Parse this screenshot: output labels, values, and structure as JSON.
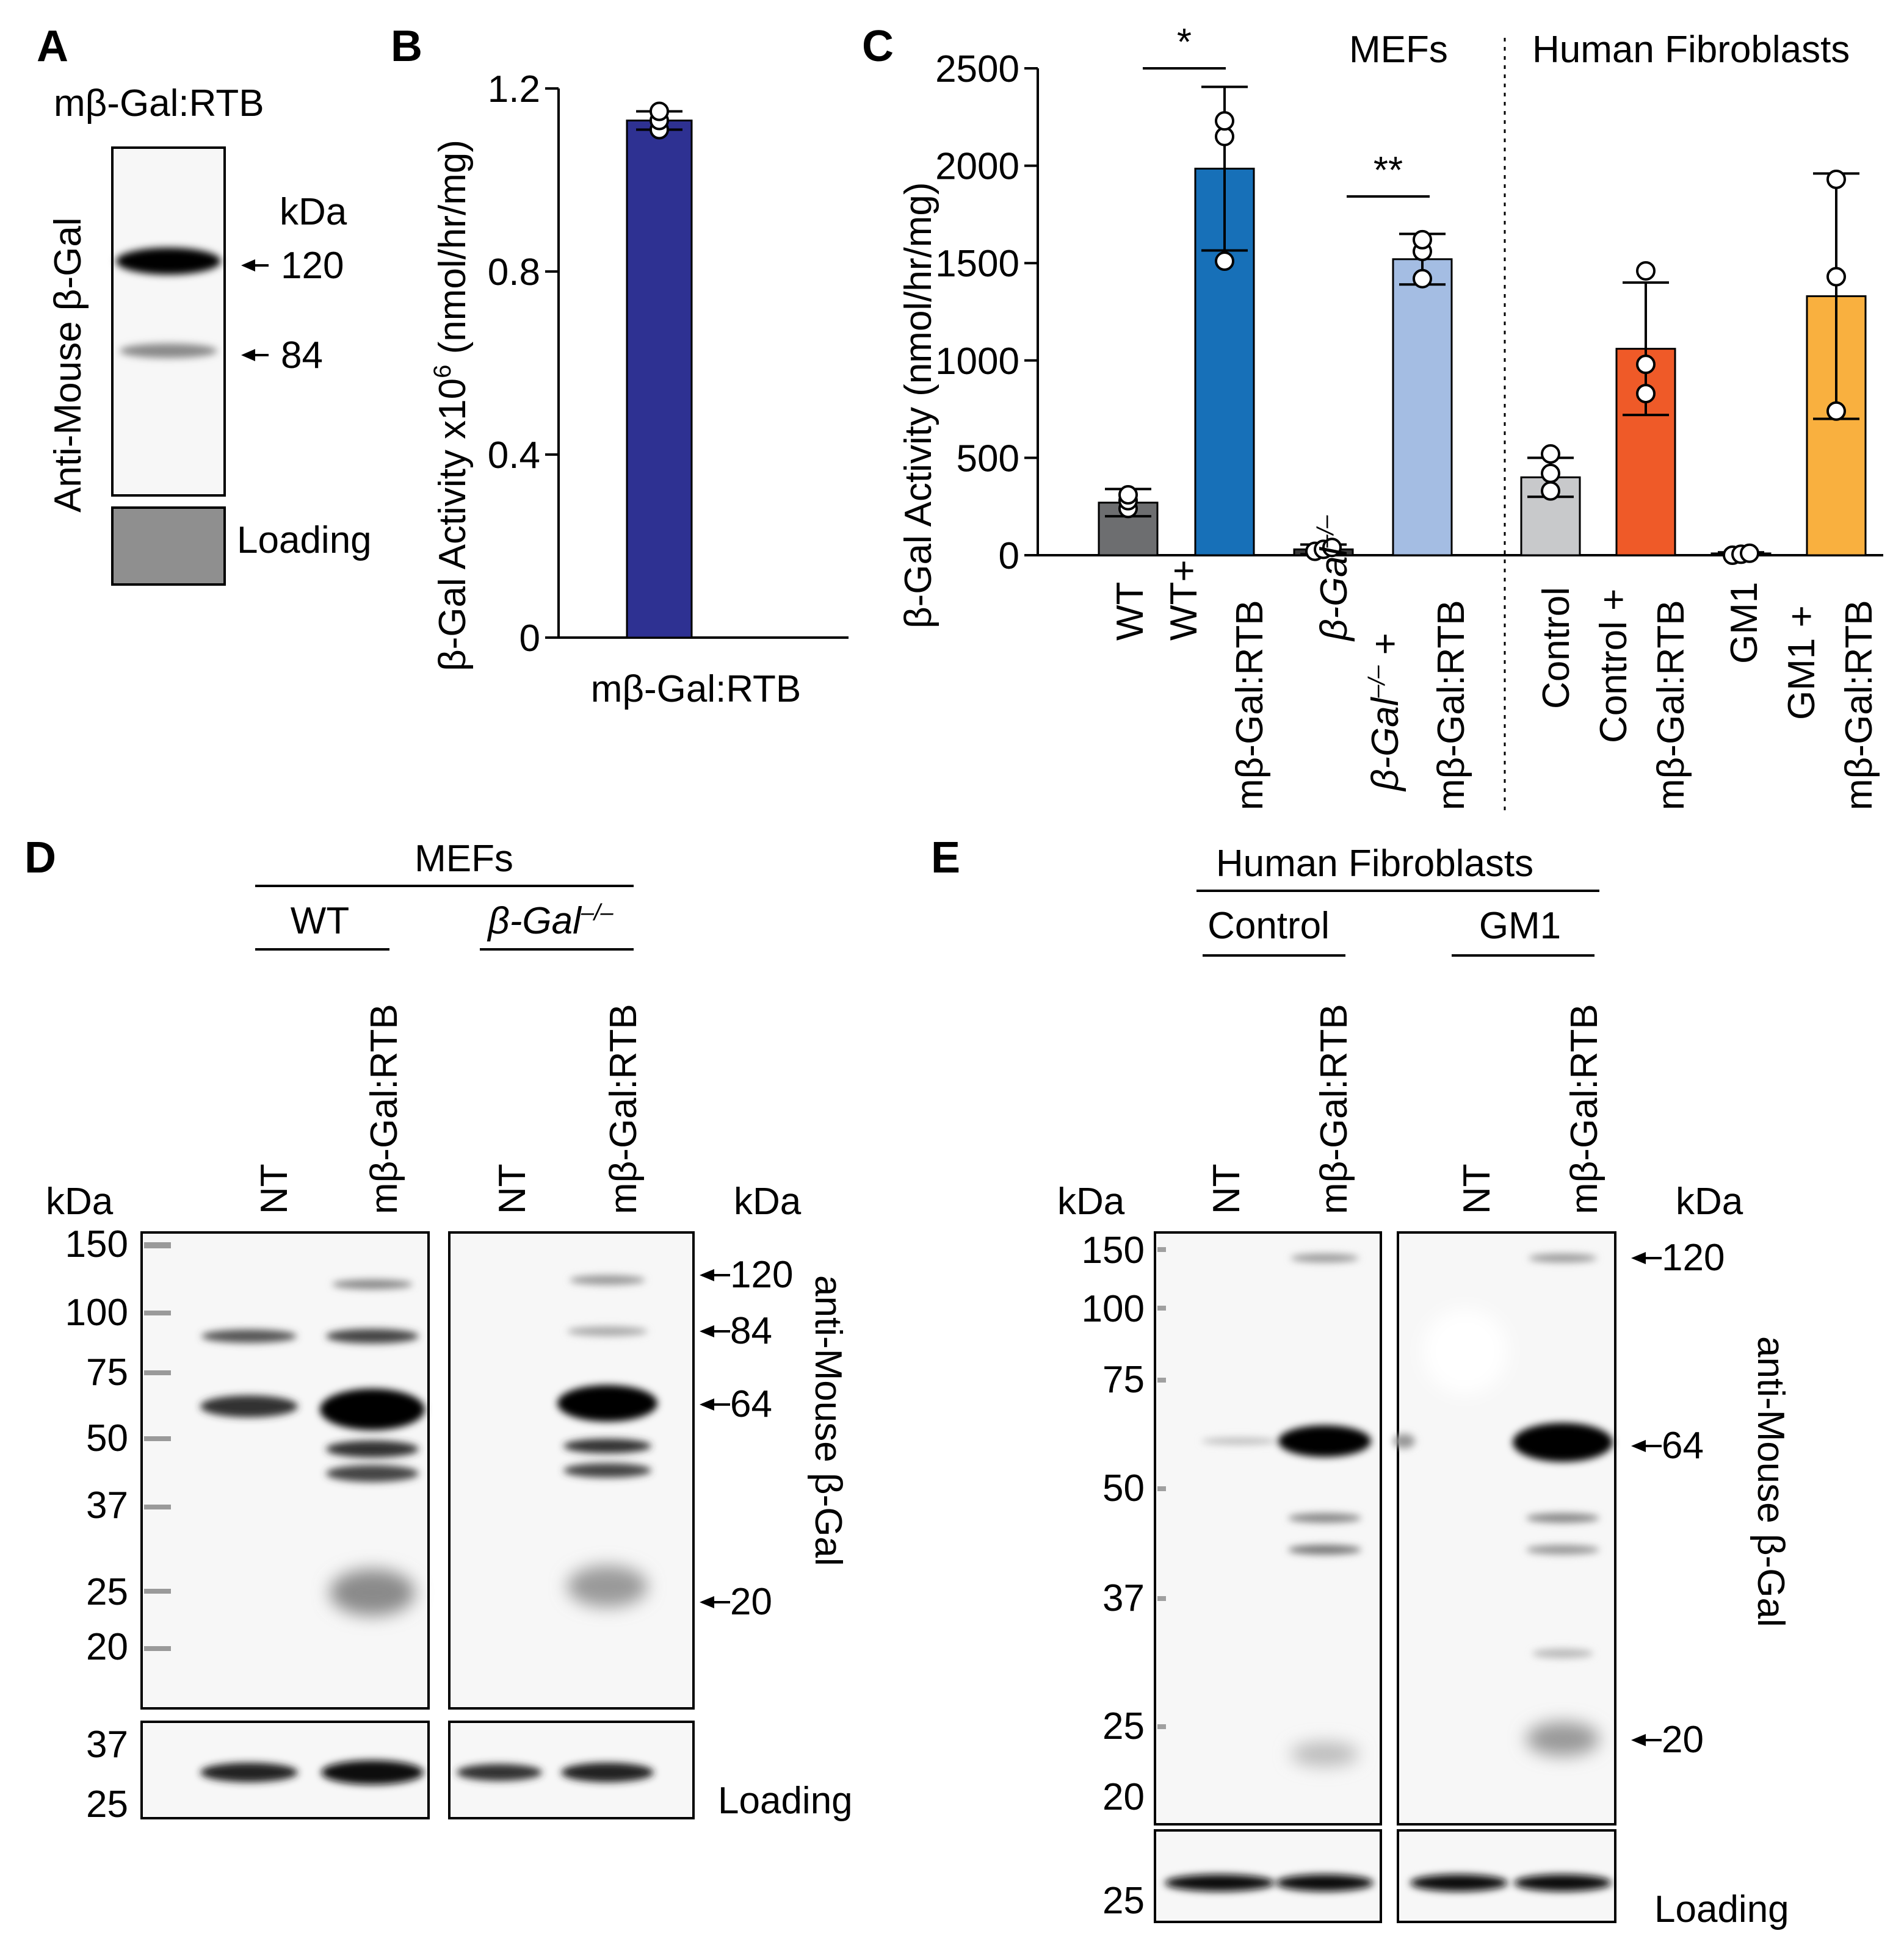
{
  "panels": {
    "A": {
      "label": "A",
      "header": "mβ-Gal:RTB",
      "ylabel": "Anti-Mouse β-Gal",
      "kda_label": "kDa",
      "markers": [
        "120",
        "84"
      ],
      "loading": "Loading"
    },
    "B": {
      "label": "B",
      "ylabel": "β-Gal Activity x10",
      "ylabel_sup": "6",
      "ylabel_units": " (nmol/hr/mg)",
      "bar_color": "#2e3192"
    },
    "C": {
      "label": "C",
      "ylabel": "β-Gal Activity (nmol/hr/mg)",
      "group_mefs": "MEFs",
      "group_human": "Human Fibroblasts",
      "star_single": "*",
      "star_double": "**",
      "tick_labels": [
        [
          "WT"
        ],
        [
          "WT+",
          "mβ-Gal:RTB"
        ],
        [
          "β-Gal",
          "–/–"
        ],
        [
          "β-Gal",
          "–/–",
          " +",
          "mβ-Gal:RTB"
        ],
        [
          "Control"
        ],
        [
          "Control +",
          "mβ-Gal:RTB"
        ],
        [
          "GM1"
        ],
        [
          "GM1 +",
          "mβ-Gal:RTB"
        ]
      ]
    },
    "D": {
      "label": "D",
      "group": "MEFs",
      "sub_wt": "WT",
      "sub_ko": "β-Gal",
      "sub_ko_sup": "–/–",
      "lanes": [
        "NT",
        "mβ-Gal:RTB",
        "NT",
        "mβ-Gal:RTB"
      ],
      "kda_left": "kDa",
      "kda_right": "kDa",
      "ladder": [
        "150",
        "100",
        "75",
        "50",
        "37",
        "25",
        "20"
      ],
      "loading_ladder": [
        "37",
        "25"
      ],
      "arrows": [
        "120",
        "84",
        "64",
        "20"
      ],
      "side_label": "anti-Mouse β-Gal",
      "loading": "Loading"
    },
    "E": {
      "label": "E",
      "group": "Human Fibroblasts",
      "sub_control": "Control",
      "sub_gm1": "GM1",
      "lanes": [
        "NT",
        "mβ-Gal:RTB",
        "NT",
        "mβ-Gal:RTB"
      ],
      "kda_left": "kDa",
      "kda_right": "kDa",
      "ladder": [
        "150",
        "100",
        "75",
        "50",
        "37",
        "25",
        "20"
      ],
      "loading_ladder": [
        "25"
      ],
      "arrows": [
        "120",
        "64",
        "20"
      ],
      "side_label": "anti-Mouse β-Gal",
      "loading": "Loading"
    }
  },
  "chart_data": [
    {
      "panel": "B",
      "type": "bar",
      "categories": [
        "mβ-Gal:RTB"
      ],
      "values": [
        1.13
      ],
      "errors": [
        0.02
      ],
      "points": [
        [
          1.11,
          1.13,
          1.15
        ]
      ],
      "ylabel": "β-Gal Activity x10^6 (nmol/hr/mg)",
      "ylim": [
        0,
        1.2
      ],
      "yticks": [
        "0",
        "0.4",
        "0.8",
        "1.2"
      ],
      "colors": [
        "#2e3192"
      ]
    },
    {
      "panel": "C",
      "type": "bar",
      "categories": [
        "WT",
        "WT+ mβ-Gal:RTB",
        "β-Gal–/–",
        "β-Gal–/– + mβ-Gal:RTB",
        "Control",
        "Control + mβ-Gal:RTB",
        "GM1",
        "GM1 + mβ-Gal:RTB"
      ],
      "values": [
        270,
        1985,
        30,
        1520,
        400,
        1060,
        5,
        1330
      ],
      "errors": [
        70,
        420,
        25,
        130,
        100,
        340,
        10,
        630
      ],
      "points": [
        [
          240,
          280,
          310
        ],
        [
          1510,
          2150,
          2230
        ],
        [
          20,
          30,
          40
        ],
        [
          1420,
          1560,
          1620
        ],
        [
          330,
          420,
          520
        ],
        [
          830,
          980,
          1460
        ],
        [
          0,
          5,
          10
        ],
        [
          740,
          1430,
          1930
        ]
      ],
      "colors": [
        "#6d6e70",
        "#1770b8",
        "#3a3a3a",
        "#a4bde3",
        "#c8c9cb",
        "#ef5a28",
        "#ffffff",
        "#f9b03f"
      ],
      "ylabel": "β-Gal Activity (nmol/hr/mg)",
      "ylim": [
        0,
        2500
      ],
      "yticks": [
        "0",
        "500",
        "1000",
        "1500",
        "2000",
        "2500"
      ],
      "significance": [
        {
          "between": [
            "WT",
            "WT+ mβ-Gal:RTB"
          ],
          "label": "*"
        },
        {
          "between": [
            "β-Gal–/–",
            "β-Gal–/– + mβ-Gal:RTB"
          ],
          "label": "**"
        }
      ],
      "groups": [
        "MEFs",
        "Human Fibroblasts"
      ]
    }
  ]
}
